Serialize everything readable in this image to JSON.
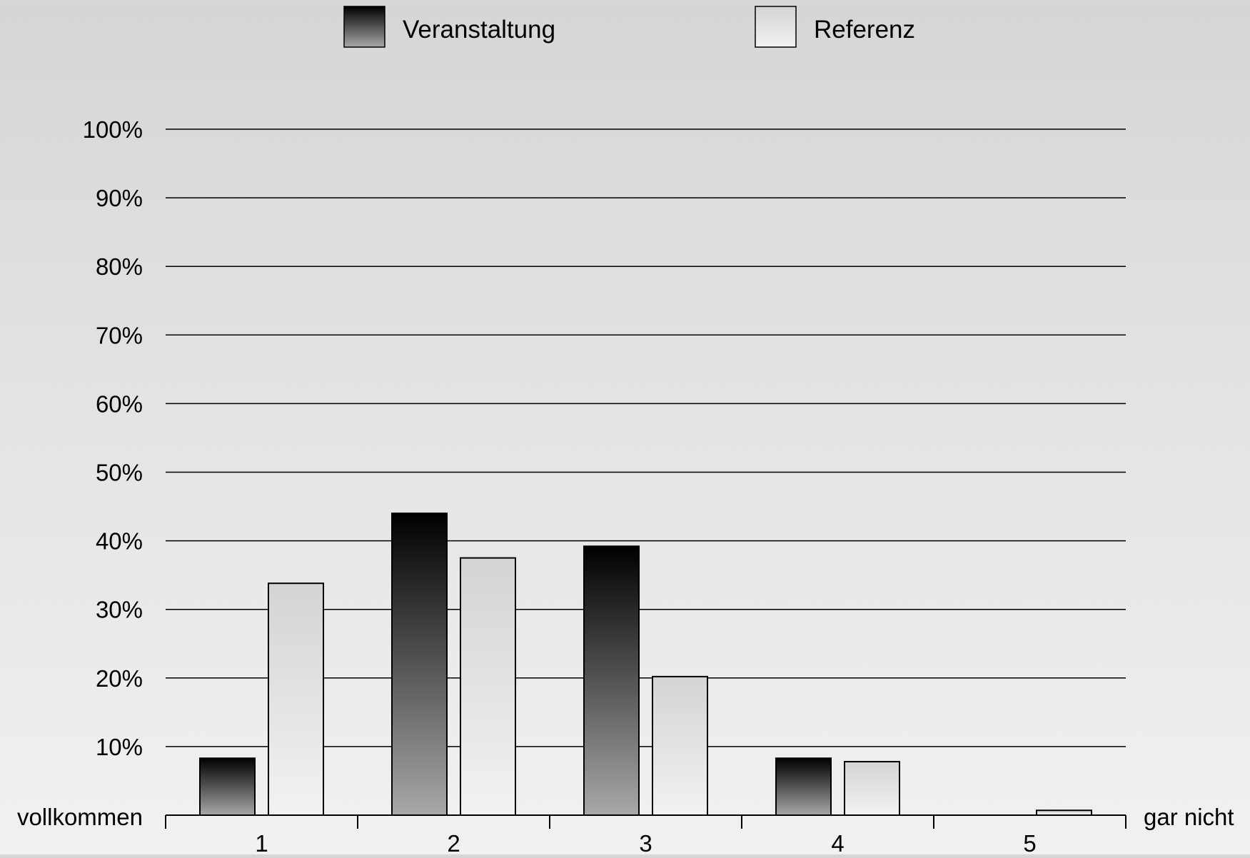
{
  "colors": {
    "veranstaltung_top": "#000000",
    "veranstaltung_bottom": "#a8a8a8",
    "referenz_top": "#d4d4d4",
    "referenz_bottom": "#f2f2f2",
    "outline": "#000000",
    "gridline": "#000000"
  },
  "chart_data": {
    "type": "bar",
    "categories": [
      "1",
      "2",
      "3",
      "4",
      "5"
    ],
    "series": [
      {
        "name": "Veranstaltung",
        "values": [
          8.3,
          44.0,
          39.2,
          8.3,
          0.0
        ]
      },
      {
        "name": "Referenz",
        "values": [
          33.8,
          37.5,
          20.2,
          7.8,
          0.7
        ]
      }
    ],
    "ylim": [
      0,
      100
    ],
    "yticks": [
      10,
      20,
      30,
      40,
      50,
      60,
      70,
      80,
      90,
      100
    ],
    "ytick_labels": [
      "10%",
      "20%",
      "30%",
      "40%",
      "50%",
      "60%",
      "70%",
      "80%",
      "90%",
      "100%"
    ],
    "x_left_label": "vollkommen",
    "x_right_label": "gar nicht",
    "grid": true,
    "legend_position": "top"
  }
}
